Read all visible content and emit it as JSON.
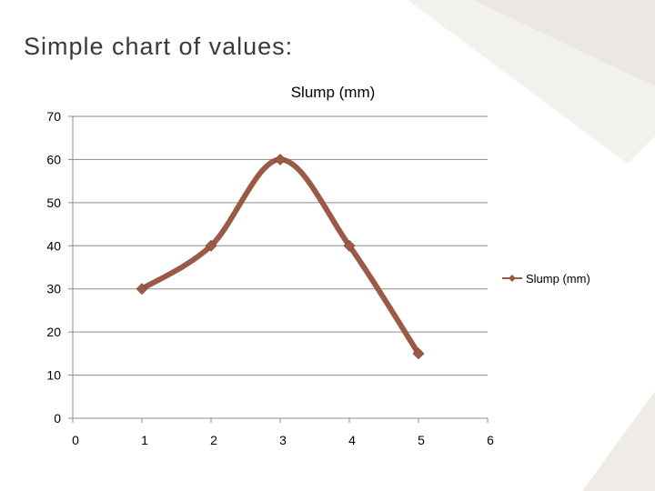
{
  "slide": {
    "title": "Simple chart of values:"
  },
  "chart_data": {
    "type": "scatter",
    "title": "Slump (mm)",
    "xlabel": "",
    "ylabel": "",
    "xlim": [
      0,
      6
    ],
    "ylim": [
      0,
      70
    ],
    "x_ticks": [
      0,
      1,
      2,
      3,
      4,
      5,
      6
    ],
    "y_ticks": [
      0,
      10,
      20,
      30,
      40,
      50,
      60,
      70
    ],
    "grid": true,
    "smooth": true,
    "legend_position": "right",
    "series": [
      {
        "name": "Slump (mm)",
        "color": "#9b5a45",
        "marker": "diamond",
        "points": [
          {
            "x": 1,
            "y": 30
          },
          {
            "x": 2,
            "y": 40
          },
          {
            "x": 3,
            "y": 60
          },
          {
            "x": 4,
            "y": 40
          },
          {
            "x": 5,
            "y": 15
          }
        ]
      }
    ]
  }
}
